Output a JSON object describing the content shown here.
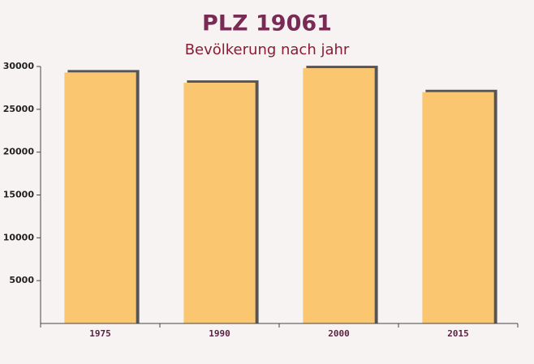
{
  "chart_data": {
    "type": "bar",
    "title": "PLZ 19061",
    "subtitle": "Bevölkerung nach jahr",
    "categories": [
      "1975",
      "1990",
      "2000",
      "2015"
    ],
    "values": [
      29300,
      28100,
      29800,
      27000
    ],
    "color": "#fbbf5c",
    "ylim": [
      0,
      30000
    ],
    "yticks": [
      5000,
      10000,
      15000,
      20000,
      25000,
      30000
    ],
    "grid": false
  }
}
